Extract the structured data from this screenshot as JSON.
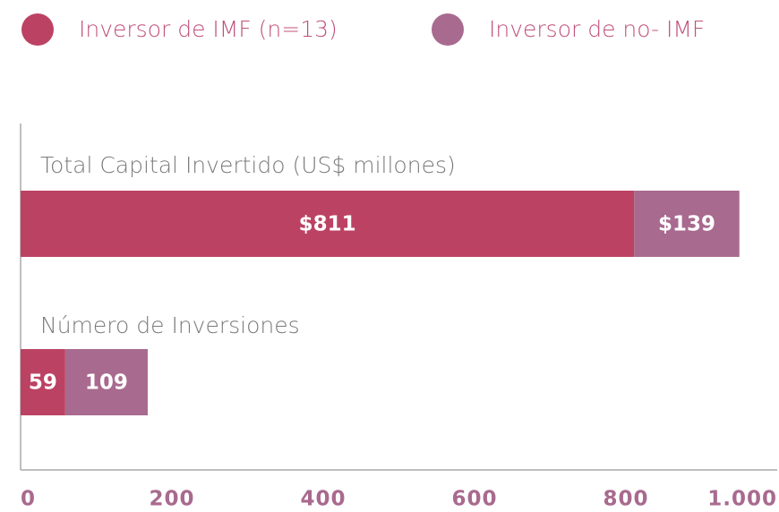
{
  "chart_data": {
    "type": "stacked-bar-horizontal",
    "categories": [
      "Total Capital Invertido (US$ millones)",
      "Número de Inversiones"
    ],
    "series": [
      {
        "name": "Inversor de IMF (n=13)",
        "color": "#bc4263",
        "values": [
          811,
          59
        ],
        "value_labels": [
          "$811",
          "59"
        ]
      },
      {
        "name": "Inversor de no- IMF",
        "color": "#a86a8e",
        "values": [
          139,
          109
        ],
        "value_labels": [
          "$139",
          "109"
        ]
      }
    ],
    "xlim": [
      0,
      1000
    ],
    "xticks": [
      0,
      200,
      400,
      600,
      800,
      {
        "value": 1000,
        "label": "1.000"
      }
    ]
  }
}
